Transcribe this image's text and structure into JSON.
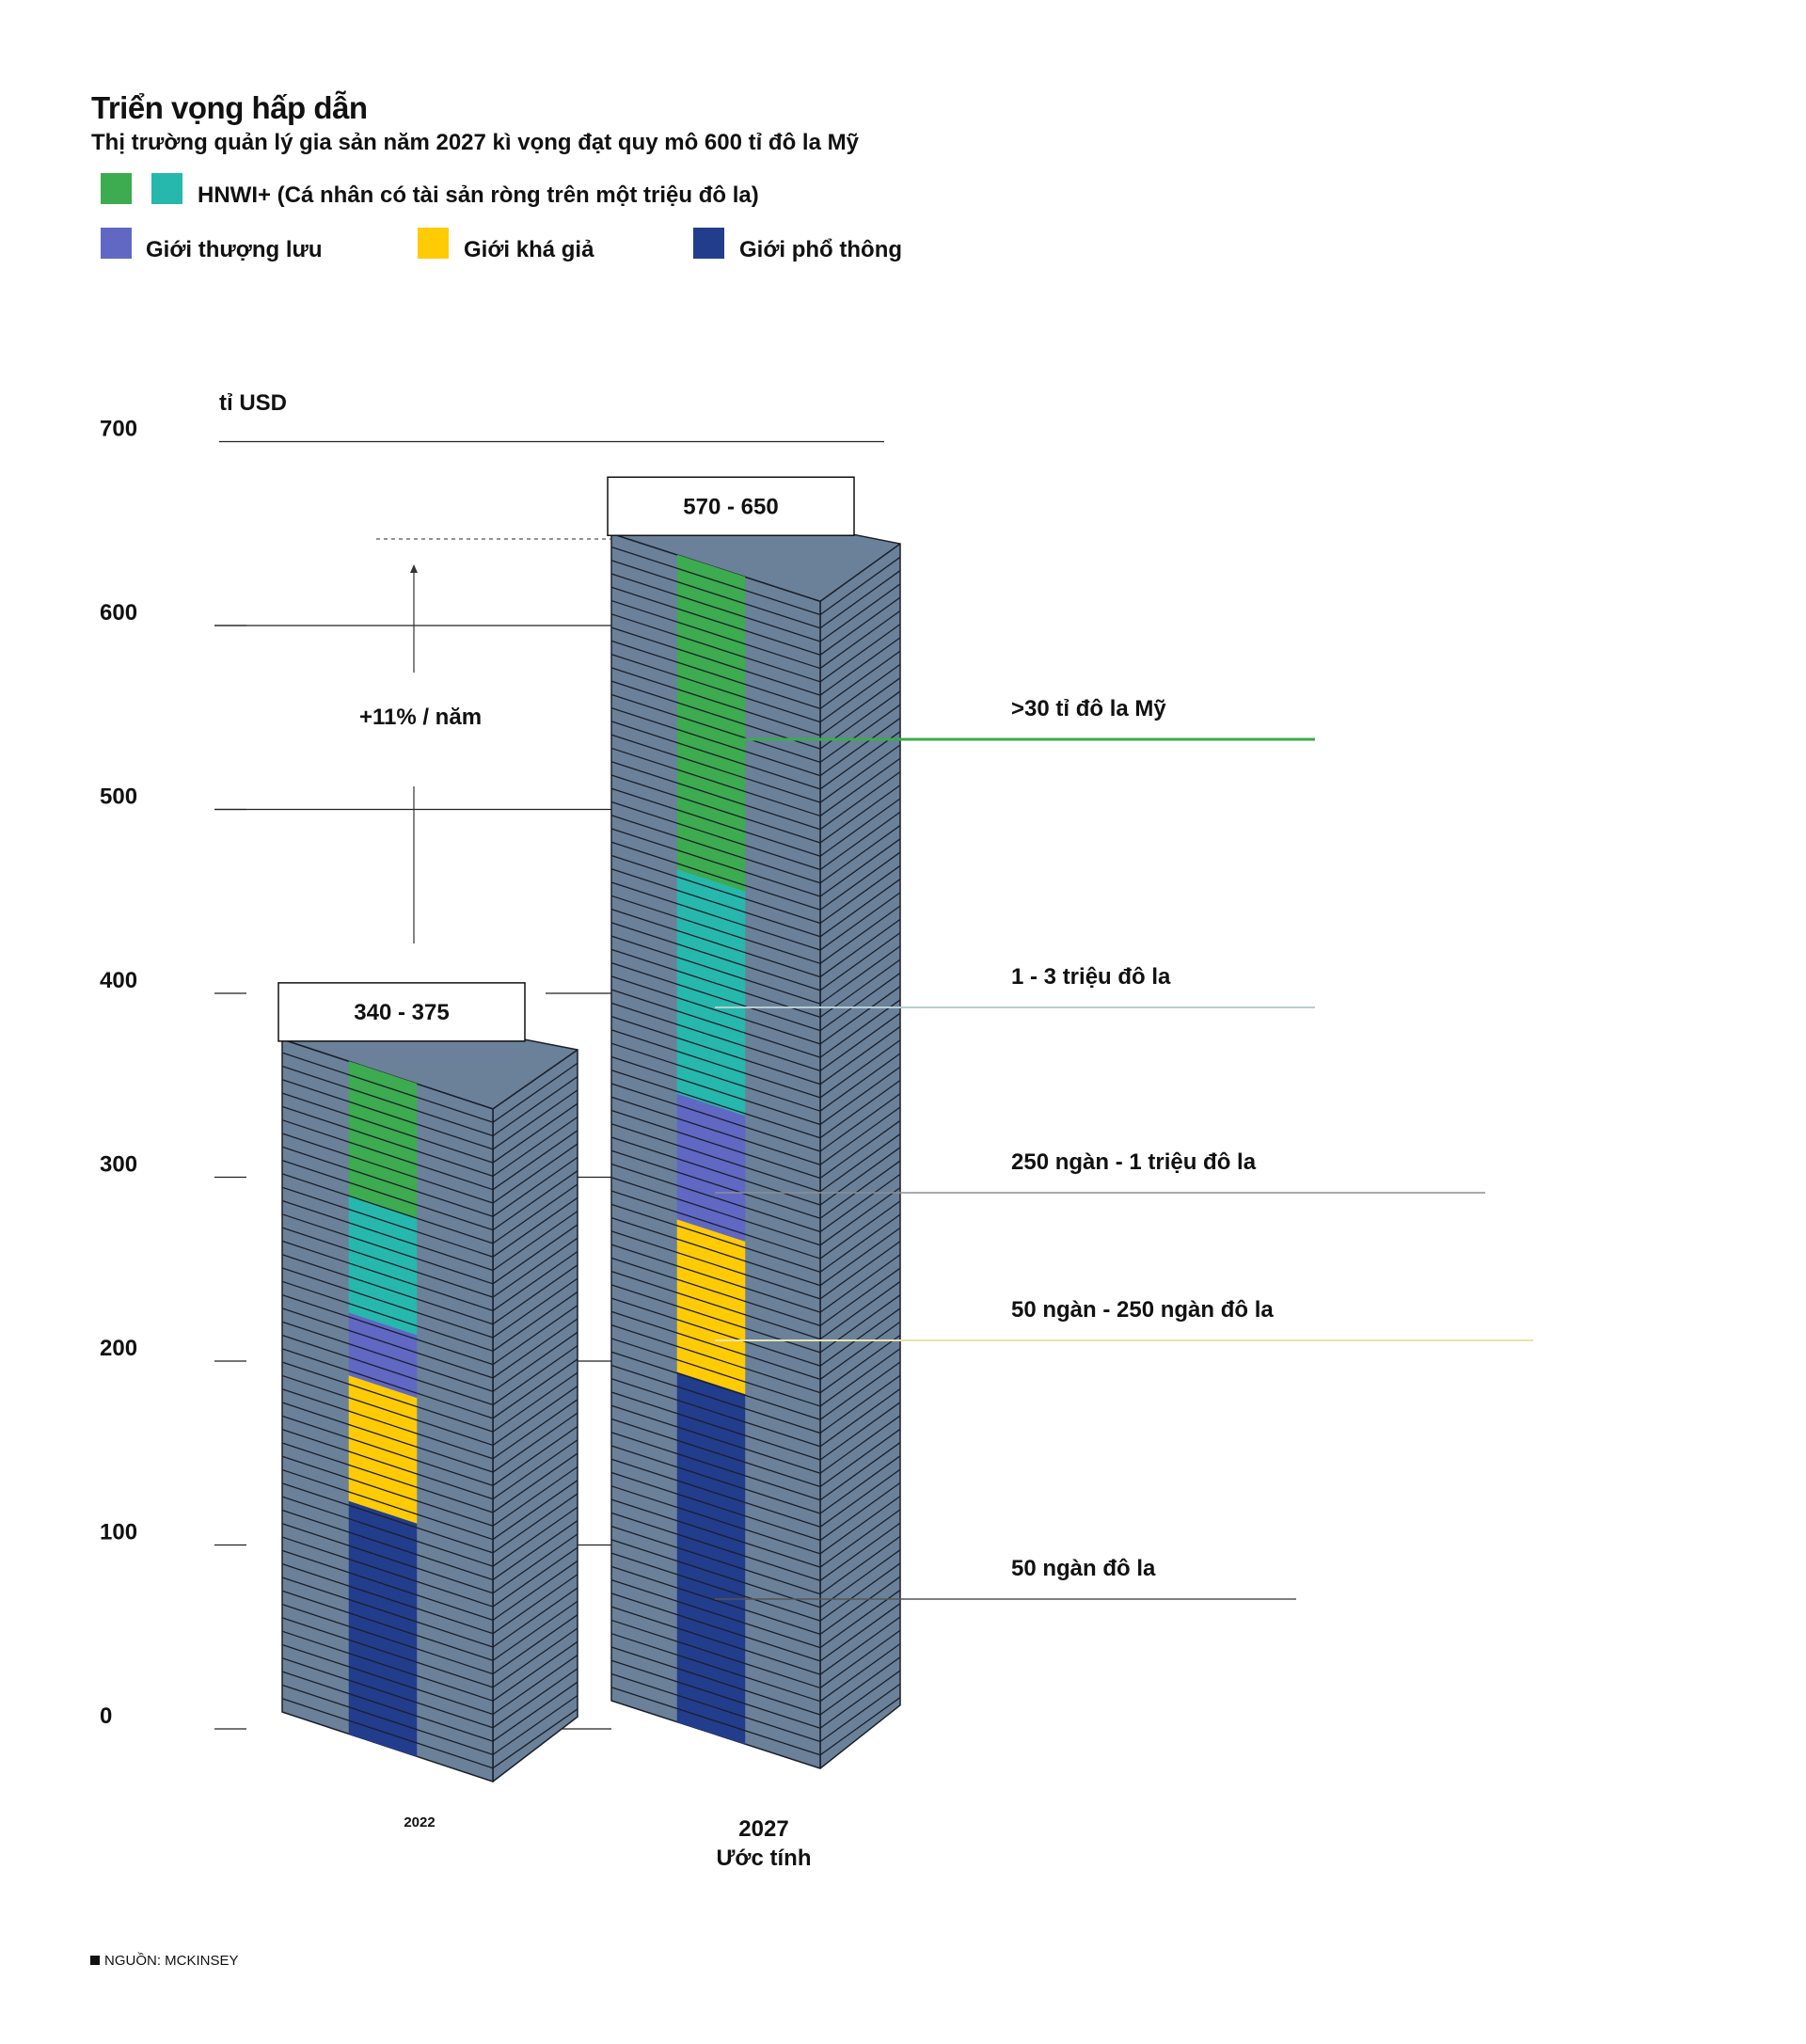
{
  "title": "Triển vọng hấp dẫn",
  "subtitle": "Thị trường quản lý gia sản năm 2027 kì vọng đạt quy mô 600 tỉ đô la Mỹ",
  "legend": {
    "hnwi_label": "HNWI+ (Cá nhân có tài sản ròng trên một triệu đô la)",
    "affluent_top_label": "Giới thượng lưu",
    "affluent_label": "Giới khá giả",
    "mass_label": "Giới phổ thông"
  },
  "colors": {
    "hnwi_high": "#3dab4f",
    "hnwi_low": "#26b8ad",
    "upper": "#6068c4",
    "affluent": "#ffcb05",
    "mass": "#233d8d",
    "building": "#6a8199",
    "building_dark": "#1a1f2a"
  },
  "source": "NGUỒN: MCKINSEY",
  "chart_data": {
    "type": "bar",
    "ylabel": "tỉ USD",
    "ylim": [
      0,
      700
    ],
    "yticks": [
      "0",
      "100",
      "200",
      "300",
      "400",
      "500",
      "600",
      "700"
    ],
    "growth_label": "+11% / năm",
    "segments": [
      "50 ngàn đô la",
      "50 ngàn - 250 ngàn đô la",
      "250 ngàn - 1 triệu đô la",
      "1 - 3 triệu đô la",
      ">30 tỉ đô la Mỹ"
    ],
    "bars": [
      {
        "label": "2022",
        "sublabel": "",
        "range_label": "340 - 375",
        "total": 375,
        "stack": [
          130,
          70,
          35,
          65,
          75
        ]
      },
      {
        "label": "2027",
        "sublabel": "Ước tính",
        "range_label": "570 - 650",
        "total": 650,
        "stack": [
          195,
          85,
          70,
          125,
          175
        ]
      }
    ]
  }
}
